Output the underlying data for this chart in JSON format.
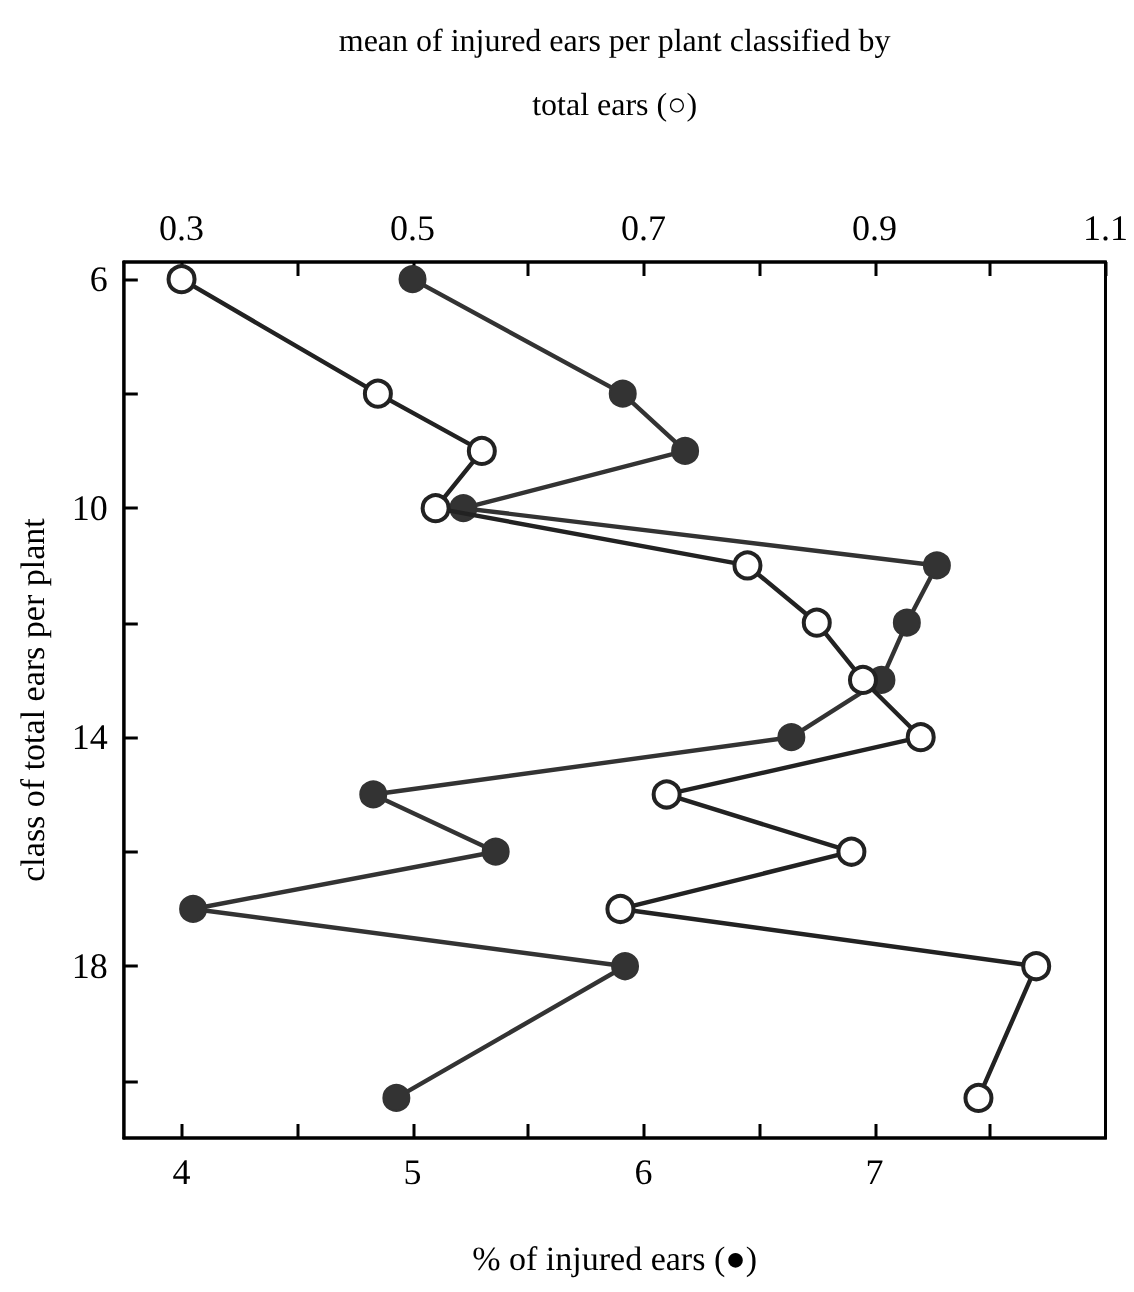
{
  "chart_data": {
    "type": "line",
    "orientation": "horizontal",
    "x2label": "mean of injured ears per plant classified by total ears (○)",
    "xlabel": "% of injured ears (●)",
    "ylabel": "class of total ears per plant",
    "xlim": [
      3.75,
      8.0
    ],
    "xticks": [
      4,
      {
        "value": 4.5,
        "label": null
      },
      5,
      {
        "value": 5.5,
        "label": null
      },
      6,
      {
        "value": 6.5,
        "label": null
      },
      7,
      {
        "value": 7.5,
        "label": null
      }
    ],
    "x2lim": [
      0.25,
      1.1
    ],
    "x2ticks": [
      0.3,
      {
        "value": 0.4,
        "label": null
      },
      0.5,
      {
        "value": 0.6,
        "label": null
      },
      0.7,
      {
        "value": 0.8,
        "label": null
      },
      0.9,
      {
        "value": 1.0,
        "label": null
      },
      1.1
    ],
    "ylim": [
      21.0,
      5.7
    ],
    "yticks": [
      6,
      {
        "value": 8,
        "label": null
      },
      10,
      {
        "value": 12,
        "label": null
      },
      14,
      {
        "value": 16,
        "label": null
      },
      18,
      {
        "value": 20,
        "label": null
      }
    ],
    "marker": "circle",
    "grid": false,
    "series": [
      {
        "color": "#333333",
        "x": [
          6,
          8,
          9,
          10,
          11,
          12,
          13,
          14,
          15,
          16,
          17,
          18,
          20.3
        ],
        "values": [
          5.0,
          5.91,
          6.18,
          5.22,
          7.27,
          7.14,
          7.03,
          6.64,
          4.83,
          5.36,
          4.05,
          5.92,
          4.93
        ]
      },
      {
        "color": "#222222",
        "axis": "x2",
        "x": [
          6,
          8,
          9,
          10,
          11,
          12,
          13,
          14,
          15,
          16,
          17,
          18,
          20.3
        ],
        "values": [
          0.3,
          0.47,
          0.56,
          0.52,
          0.79,
          0.85,
          0.89,
          0.94,
          0.72,
          0.88,
          0.68,
          1.04,
          0.99
        ]
      }
    ]
  }
}
